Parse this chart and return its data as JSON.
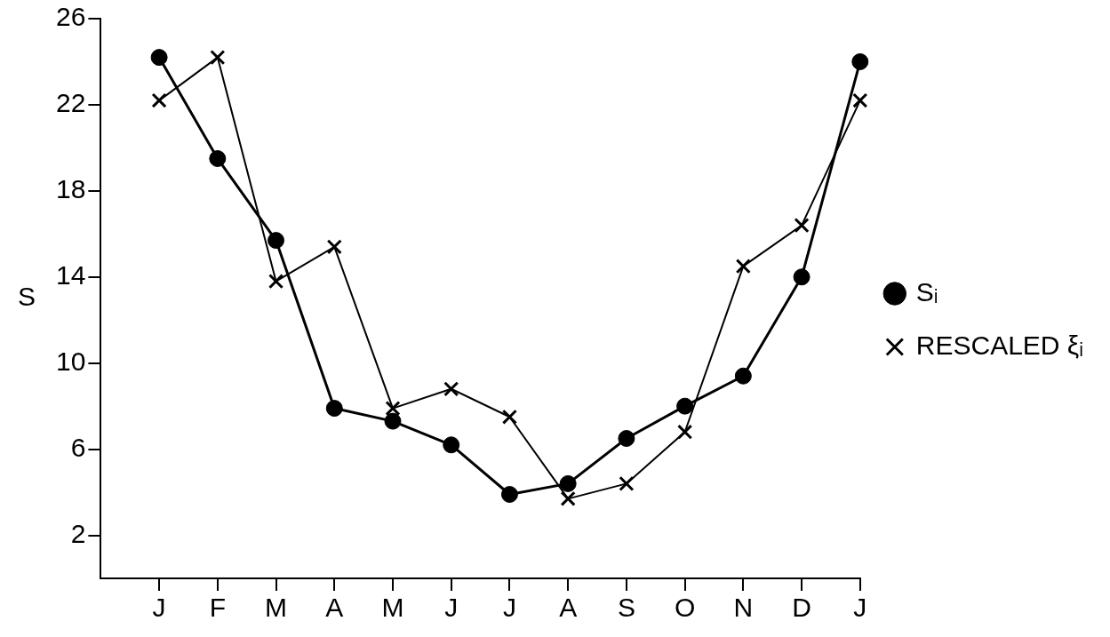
{
  "chart_data": {
    "type": "line",
    "ylabel": "S",
    "categories": [
      "J",
      "F",
      "M",
      "A",
      "M",
      "J",
      "J",
      "A",
      "S",
      "O",
      "N",
      "D",
      "J"
    ],
    "series": [
      {
        "name": "Sᵢ",
        "color": "#000000",
        "marker": "circle",
        "values": [
          24.2,
          19.5,
          15.7,
          7.9,
          7.3,
          6.2,
          3.9,
          4.4,
          6.5,
          8.0,
          9.4,
          14.0,
          24.0
        ]
      },
      {
        "name": "RESCALED ξᵢ",
        "color": "#000000",
        "marker": "cross",
        "values": [
          22.2,
          24.2,
          13.8,
          15.4,
          7.9,
          8.8,
          7.5,
          3.7,
          4.4,
          6.8,
          14.5,
          16.4,
          22.2
        ]
      }
    ],
    "ylim": [
      0,
      26
    ],
    "yticks": [
      2,
      6,
      10,
      14,
      18,
      22,
      26
    ],
    "legend": "right",
    "line_style": "solid"
  }
}
